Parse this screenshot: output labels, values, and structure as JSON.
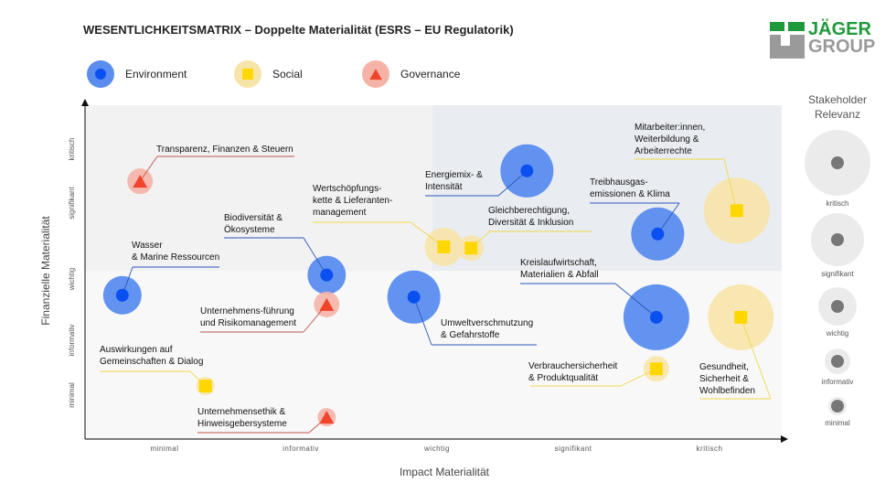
{
  "header": {
    "title": "WESENTLICHKEITSMATRIX  – Doppelte Materialität  (ESRS – EU Regulatorik)",
    "logo_text": [
      "JÄGER",
      "GROUP"
    ]
  },
  "legend": [
    {
      "label": "Environment",
      "shape": "circle"
    },
    {
      "label": "Social",
      "shape": "square"
    },
    {
      "label": "Governance",
      "shape": "triangle"
    }
  ],
  "colors": {
    "Environment": {
      "halo": "#5b8def",
      "mark": "#0a4ff0"
    },
    "Social": {
      "halo": "#f7e4a8",
      "mark": "#ffd700"
    },
    "Governance": {
      "halo": "#f5b3a7",
      "mark": "#f0452a"
    },
    "relevance_halo": "#ebebeb",
    "relevance_dot": "#777777"
  },
  "chart_data": {
    "type": "scatter",
    "title": "WESENTLICHKEITSMATRIX  – Doppelte Materialität  (ESRS – EU Regulatorik)",
    "xlabel": "Impact Materialität",
    "ylabel": "Finanzielle Materialität",
    "x_ticks": [
      "minimal",
      "informativ",
      "wichtig",
      "signifikant",
      "kritisch"
    ],
    "y_ticks": [
      "minimal",
      "informativ",
      "wichtig",
      "signifikant",
      "kritisch"
    ],
    "xlim": [
      0.1,
      5.5
    ],
    "ylim": [
      0.3,
      5.7
    ],
    "size_legend": {
      "title": [
        "Stakeholder",
        "Relevanz"
      ],
      "levels": [
        "kritisch",
        "signifikant",
        "wichtig",
        "informativ",
        "minimal"
      ]
    },
    "points": [
      {
        "label": [
          "Transparenz, Finanzen & Steuern"
        ],
        "category": "Governance",
        "x": 0.82,
        "y": 4.49,
        "relevance": "informativ"
      },
      {
        "label": [
          "Wasser",
          "& Marine Ressourcen"
        ],
        "category": "Environment",
        "x": 0.69,
        "y": 2.63,
        "relevance": "wichtig"
      },
      {
        "label": [
          "Biodiversität &",
          "Ökosysteme"
        ],
        "category": "Environment",
        "x": 2.19,
        "y": 2.96,
        "relevance": "wichtig"
      },
      {
        "label": [
          "Unternehmens-führung",
          "und Risikomanagement"
        ],
        "category": "Governance",
        "x": 2.19,
        "y": 2.48,
        "relevance": "informativ"
      },
      {
        "label": [
          "Auswirkungen auf",
          "Gemeinschaften & Dialog"
        ],
        "category": "Social",
        "x": 1.3,
        "y": 1.15,
        "relevance": "minimal"
      },
      {
        "label": [
          "Unternehmensethik &",
          "Hinweisgebersysteme"
        ],
        "category": "Governance",
        "x": 2.19,
        "y": 0.64,
        "relevance": "minimal"
      },
      {
        "label": [
          "Wertschöpfungs-",
          "kette & Lieferanten-",
          "management"
        ],
        "category": "Social",
        "x": 3.05,
        "y": 3.42,
        "relevance": "wichtig"
      },
      {
        "label": [
          "Energiemix- &",
          "Intensität"
        ],
        "category": "Environment",
        "x": 3.66,
        "y": 4.66,
        "relevance": "signifikant"
      },
      {
        "label": [
          "Gleichberechtigung,",
          "Diversität & Inklusion"
        ],
        "category": "Social",
        "x": 3.25,
        "y": 3.4,
        "relevance": "informativ"
      },
      {
        "label": [
          "Treibhausgas-",
          "emissionen & Klima"
        ],
        "category": "Environment",
        "x": 4.62,
        "y": 3.63,
        "relevance": "signifikant"
      },
      {
        "label": [
          "Mitarbeiter:innen,",
          "Weiterbildung &",
          "Arbeiterrechte"
        ],
        "category": "Social",
        "x": 5.2,
        "y": 4.01,
        "relevance": "kritisch"
      },
      {
        "label": [
          "Kreislaufwirtschaft,",
          "Materialien & Abfall"
        ],
        "category": "Environment",
        "x": 4.61,
        "y": 2.27,
        "relevance": "kritisch"
      },
      {
        "label": [
          "Umweltverschmutzung",
          "& Gefahrstoffe"
        ],
        "category": "Environment",
        "x": 2.83,
        "y": 2.6,
        "relevance": "signifikant"
      },
      {
        "label": [
          "Verbrauchersicherheit",
          "& Produktqualität"
        ],
        "category": "Social",
        "x": 4.61,
        "y": 1.43,
        "relevance": "informativ"
      },
      {
        "label": [
          "Gesundheit,",
          "Sicherheit &",
          "Wohlbefinden"
        ],
        "category": "Social",
        "x": 5.23,
        "y": 2.27,
        "relevance": "kritisch"
      }
    ]
  }
}
